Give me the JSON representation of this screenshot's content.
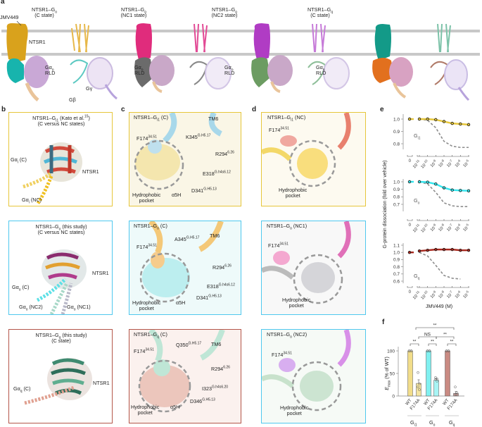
{
  "panel_letters": {
    "a": "a",
    "b": "b",
    "c": "c",
    "d": "d",
    "e": "e",
    "f": "f"
  },
  "colors": {
    "gi_border": "#e6c63a",
    "go_border": "#4fc8ee",
    "gq_border": "#b4564a",
    "gi_bar": "#f2dd8a",
    "go_bar": "#80f0f0",
    "gq_bar": "#c98a82"
  },
  "panel_a": {
    "structures": [
      {
        "title_main": "NTSR1–G",
        "title_sub": "o",
        "state": "(C state)",
        "receptor_color": "#d9a21c",
        "galpha_color": "#17b4ad",
        "rld_label_main": "Gα",
        "rld_label_sub": "o",
        "rld_label_2": "RLD"
      },
      {
        "title_main": "NTSR1–G",
        "title_sub": "o",
        "state": "(NC1 state)",
        "receptor_color": "#e02c7c",
        "galpha_color": "#707070",
        "rld_label_main": "Gα",
        "rld_label_sub": "o",
        "rld_label_2": "RLD"
      },
      {
        "title_main": "NTSR1–G",
        "title_sub": "o",
        "state": "(NC2 state)",
        "receptor_color": "#b03cc4",
        "galpha_color": "#6c9c62",
        "rld_label_main": "Gα",
        "rld_label_sub": "o",
        "rld_label_2": "RLD"
      },
      {
        "title_main": "NTSR1–G",
        "title_sub": "q",
        "state": "(C state)",
        "receptor_color": "#139a88",
        "galpha_color": "#e2701e",
        "rld_label_main": "Gα",
        "rld_label_sub": "q",
        "rld_label_2": "RLD"
      }
    ],
    "ligand_label": "JMV449",
    "receptor_label": "NTSR1",
    "gbeta_label": "Gβ",
    "ggamma_label": "Gγ"
  },
  "panel_b": [
    {
      "title_1_main": "NTSR1–G",
      "title_1_sub": "i1",
      "title_1_rest": " (Kato et al.",
      "title_1_ref": "15",
      "title_1_end": ")",
      "title_2": "(C versus NC states)",
      "receptor_label": "NTSR1",
      "alpha_labels": [
        {
          "main": "Gα",
          "sub": "i",
          "rest": " (C)"
        },
        {
          "main": "Gα",
          "sub": "i",
          "rest": " (NC)"
        }
      ]
    },
    {
      "title_1_main": "NTSR1–G",
      "title_1_sub": "o",
      "title_1_rest": " (this study)",
      "title_2": "(C versus NC states)",
      "receptor_label": "NTSR1",
      "alpha_labels": [
        {
          "main": "Gα",
          "sub": "o",
          "rest": " (C)"
        },
        {
          "main": "Gα",
          "sub": "o",
          "rest": " (NC2)"
        },
        {
          "main": "Gα",
          "sub": "o",
          "rest": " (NC1)"
        }
      ]
    },
    {
      "title_1_main": "NTSR1–G",
      "title_1_sub": "q",
      "title_1_rest": " (this study)",
      "title_2": "(C state)",
      "receptor_label": "NTSR1",
      "alpha_labels": [
        {
          "main": "Gα",
          "sub": "q",
          "rest": " (C)"
        }
      ]
    }
  ],
  "panel_c": [
    {
      "title_main": "NTSR1–G",
      "title_sub": "i1",
      "title_rest": " (C)",
      "tm6": "TM6",
      "pocket_1": "Hydrophobic",
      "pocket_2": "pocket",
      "helix": "α5H",
      "residues": [
        {
          "name": "F174",
          "sup": "34.51"
        },
        {
          "name": "K345",
          "sup": "G.H5.17"
        },
        {
          "name": "R294",
          "sup": "6.26"
        },
        {
          "name": "E318",
          "sup": "G.h4s6.12"
        },
        {
          "name": "D341",
          "sup": "G.H5.13"
        }
      ]
    },
    {
      "title_main": "NTSR1–G",
      "title_sub": "o",
      "title_rest": " (C)",
      "tm6": "TM6",
      "pocket_1": "Hydrophobic",
      "pocket_2": "pocket",
      "helix": "α5H",
      "residues": [
        {
          "name": "F174",
          "sup": "34.51"
        },
        {
          "name": "A345",
          "sup": "G.H5.17"
        },
        {
          "name": "R294",
          "sup": "6.26"
        },
        {
          "name": "E318",
          "sup": "G.h4s6.12"
        },
        {
          "name": "D341",
          "sup": "G.H5.13"
        }
      ]
    },
    {
      "title_main": "NTSR1–G",
      "title_sub": "q",
      "title_rest": " (C)",
      "tm6": "TM6",
      "pocket_1": "Hydrophobic",
      "pocket_2": "pocket",
      "helix": "α5H",
      "residues": [
        {
          "name": "F174",
          "sup": "34.51"
        },
        {
          "name": "Q350",
          "sup": "G.H5.17"
        },
        {
          "name": "R294",
          "sup": "6.26"
        },
        {
          "name": "I323",
          "sup": "G.h4s6.20"
        },
        {
          "name": "D346",
          "sup": "G.H5.13"
        }
      ]
    }
  ],
  "panel_d": [
    {
      "title_main": "NTSR1–G",
      "title_sub": "i1",
      "title_rest": " (NC)",
      "residue": "F174",
      "residue_sup": "34.51",
      "pocket_1": "Hydrophobic",
      "pocket_2": "pocket"
    },
    {
      "title_main": "NTSR1–G",
      "title_sub": "o",
      "title_rest": " (NC1)",
      "residue": "F174",
      "residue_sup": "34.51",
      "pocket_1": "Hydrophobic",
      "pocket_2": "pocket"
    },
    {
      "title_main": "NTSR1–G",
      "title_sub": "o",
      "title_rest": " (NC2)",
      "residue": "F174",
      "residue_sup": "34.51",
      "pocket_1": "Hydrophobic",
      "pocket_2": "pocket"
    }
  ],
  "chart_data": [
    {
      "type": "line",
      "panel": "e",
      "ylabel": "G-protein dissociation (fold over vehicle)",
      "xlabel": "JMV449 (M)",
      "x_ticks": [
        "0",
        "10^-11",
        "10^-10",
        "10^-9",
        "10^-8",
        "10^-7",
        "10^-6",
        "10^-5"
      ],
      "x_scale": "log (with axis break after 0)",
      "subplots": [
        {
          "label_main": "G",
          "label_sub": "i1",
          "color": "#e6c63a",
          "yticks": [
            "1.0",
            "0.9",
            "0.8"
          ],
          "ylim": [
            0.76,
            1.02
          ],
          "values": [
            1.0,
            1.0,
            1.0,
            0.995,
            0.98,
            0.965,
            0.96,
            0.955
          ],
          "reference_dashed": [
            null,
            1.0,
            0.99,
            0.93,
            0.82,
            0.78,
            0.77,
            0.77
          ]
        },
        {
          "label_main": "G",
          "label_sub": "o",
          "color": "#33e6ee",
          "yticks": [
            "1.0",
            "0.9",
            "0.8",
            "0.7"
          ],
          "ylim": [
            0.66,
            1.02
          ],
          "values": [
            1.0,
            1.0,
            0.995,
            0.97,
            0.92,
            0.89,
            0.885,
            0.88
          ],
          "reference_dashed": [
            null,
            1.0,
            0.97,
            0.86,
            0.72,
            0.68,
            0.67,
            0.67
          ]
        },
        {
          "label_main": "G",
          "label_sub": "q",
          "color": "#a8281e",
          "yticks": [
            "1.1",
            "1.0",
            "0.9",
            "0.8",
            "0.7",
            "0.6"
          ],
          "ylim": [
            0.6,
            1.12
          ],
          "values": [
            1.0,
            1.02,
            1.03,
            1.04,
            1.04,
            1.04,
            1.03,
            1.03
          ],
          "reference_dashed": [
            null,
            1.0,
            0.95,
            0.82,
            0.68,
            0.64,
            0.63,
            null
          ]
        }
      ],
      "grid": false
    },
    {
      "type": "bar",
      "panel": "f",
      "ylabel_main": "E",
      "ylabel_sub": "max",
      "ylabel_rest": " (% of WT)",
      "ylim": [
        0,
        110
      ],
      "yticks": [
        "0",
        "50",
        "100"
      ],
      "groups": [
        {
          "label_main": "G",
          "label_sub": "i1",
          "bars": [
            {
              "label": "WT",
              "value": 100,
              "points": [
                100,
                100,
                100,
                100
              ]
            },
            {
              "label": "F174A",
              "value": 28,
              "error": 8,
              "points": [
                52,
                27,
                20,
                14
              ]
            }
          ]
        },
        {
          "label_main": "G",
          "label_sub": "o",
          "bars": [
            {
              "label": "WT",
              "value": 100,
              "points": [
                100,
                100,
                100,
                100
              ]
            },
            {
              "label": "F174A",
              "value": 35,
              "error": 3,
              "points": [
                41,
                38,
                37,
                33
              ]
            }
          ]
        },
        {
          "label_main": "G",
          "label_sub": "q",
          "bars": [
            {
              "label": "WT",
              "value": 100,
              "points": [
                100,
                100,
                100,
                100
              ]
            },
            {
              "label": "F174A",
              "value": 6,
              "error": 4,
              "points": [
                20,
                8,
                3,
                3
              ]
            }
          ]
        }
      ],
      "significance": [
        {
          "between": "Gi1 WT vs F174A",
          "label": "**"
        },
        {
          "between": "Go WT vs F174A",
          "label": "**"
        },
        {
          "between": "Gq WT vs F174A",
          "label": "**"
        },
        {
          "between": "Gi1 F174A vs Go F174A",
          "label": "NS"
        },
        {
          "between": "Go F174A vs Gq F174A",
          "label": "**"
        },
        {
          "between": "Gi1 F174A vs Gq F174A",
          "label": "**"
        }
      ]
    }
  ]
}
